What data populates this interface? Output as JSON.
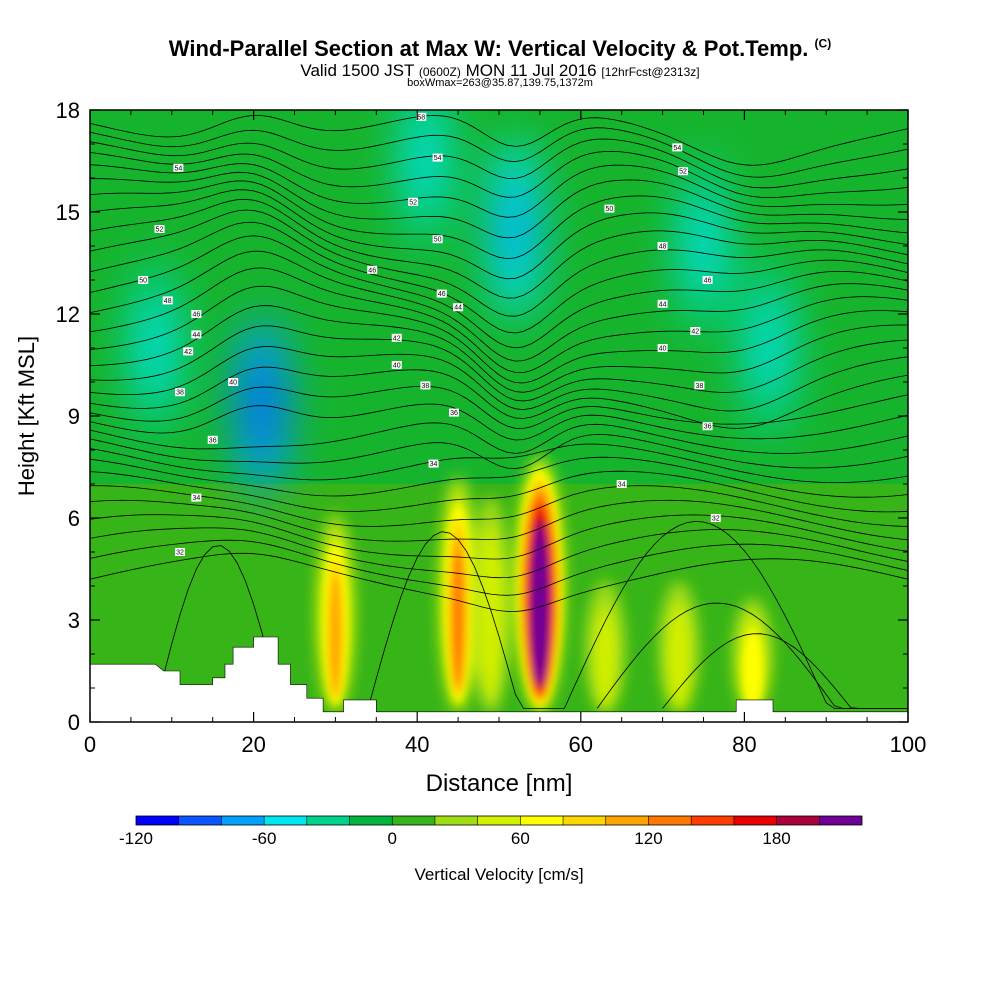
{
  "title": {
    "main": "Wind-Parallel Section at Max W: Vertical Velocity & Pot.Temp.",
    "copyright": "(C)",
    "valid_prefix": "Valid 1500 JST",
    "valid_utc": "(0600Z)",
    "valid_date": "MON 11 Jul 2016",
    "forecast": "[12hrFcst@2313z]",
    "boxwmax": "boxWmax=263@35.87,139.75,1372m"
  },
  "chart_data": {
    "type": "heatmap",
    "xlabel": "Distance [nm]",
    "ylabel": "Height [Kft MSL]",
    "xlim": [
      0,
      100
    ],
    "ylim": [
      0,
      18
    ],
    "x_ticks": [
      0,
      20,
      40,
      60,
      80,
      100
    ],
    "y_ticks": [
      0,
      3,
      6,
      9,
      12,
      15,
      18
    ],
    "colorbar": {
      "label": "Vertical Velocity [cm/s]",
      "range": [
        -120,
        220
      ],
      "step": 20,
      "tick_labels": [
        -120,
        -60,
        0,
        60,
        120,
        180
      ],
      "colors": [
        "#0000ff",
        "#0a55ff",
        "#00a0ff",
        "#00e6f0",
        "#00d28c",
        "#00b43c",
        "#37b418",
        "#a0dc14",
        "#d2f000",
        "#ffff00",
        "#ffd700",
        "#ffa500",
        "#ff7800",
        "#ff3c00",
        "#e60000",
        "#aa003c",
        "#6e0096"
      ]
    },
    "updrafts": [
      {
        "x": 55,
        "top_kft": 8.2,
        "max_cms": 263
      },
      {
        "x": 45,
        "top_kft": 7.6,
        "max_cms": 130
      },
      {
        "x": 30,
        "top_kft": 6.5,
        "max_cms": 110
      },
      {
        "x": 81,
        "top_kft": 4.0,
        "max_cms": 80
      },
      {
        "x": 72,
        "top_kft": 4.5,
        "max_cms": 60
      },
      {
        "x": 49,
        "top_kft": 7.0,
        "max_cms": 60
      },
      {
        "x": 63,
        "top_kft": 4.5,
        "max_cms": 50
      }
    ],
    "downdrafts": [
      {
        "x": 21,
        "y_kft": 9.3,
        "min_cms": -70
      },
      {
        "x": 52,
        "y_kft": 14.5,
        "min_cms": -50
      },
      {
        "x": 41,
        "y_kft": 16.5,
        "min_cms": -40
      },
      {
        "x": 8,
        "y_kft": 11,
        "min_cms": -30
      },
      {
        "x": 83,
        "y_kft": 11,
        "min_cms": -30
      },
      {
        "x": 75,
        "y_kft": 14,
        "min_cms": -25
      }
    ],
    "pot_temp_contours": {
      "levels_c": [
        28,
        30,
        32,
        34,
        36,
        38,
        40,
        42,
        44,
        46,
        48,
        50,
        52,
        54,
        56,
        58
      ],
      "labels": [
        {
          "text": "58",
          "x": 40.5,
          "y": 17.8
        },
        {
          "text": "54",
          "x": 10.8,
          "y": 16.3
        },
        {
          "text": "54",
          "x": 42.5,
          "y": 16.6
        },
        {
          "text": "54",
          "x": 71.8,
          "y": 16.9
        },
        {
          "text": "52",
          "x": 72.5,
          "y": 16.2
        },
        {
          "text": "52",
          "x": 39.5,
          "y": 15.3
        },
        {
          "text": "50",
          "x": 63.5,
          "y": 15.1
        },
        {
          "text": "52",
          "x": 8.5,
          "y": 14.5
        },
        {
          "text": "50",
          "x": 42.5,
          "y": 14.2
        },
        {
          "text": "48",
          "x": 70,
          "y": 14.0
        },
        {
          "text": "46",
          "x": 34.5,
          "y": 13.3
        },
        {
          "text": "50",
          "x": 6.5,
          "y": 13.0
        },
        {
          "text": "46",
          "x": 75.5,
          "y": 13.0
        },
        {
          "text": "46",
          "x": 43,
          "y": 12.6
        },
        {
          "text": "48",
          "x": 9.5,
          "y": 12.4
        },
        {
          "text": "44",
          "x": 45,
          "y": 12.2
        },
        {
          "text": "44",
          "x": 70,
          "y": 12.3
        },
        {
          "text": "46",
          "x": 13,
          "y": 12.0
        },
        {
          "text": "44",
          "x": 13,
          "y": 11.4
        },
        {
          "text": "42",
          "x": 74,
          "y": 11.5
        },
        {
          "text": "42",
          "x": 37.5,
          "y": 11.3
        },
        {
          "text": "42",
          "x": 12,
          "y": 10.9
        },
        {
          "text": "40",
          "x": 70,
          "y": 11.0
        },
        {
          "text": "40",
          "x": 37.5,
          "y": 10.5
        },
        {
          "text": "40",
          "x": 17.5,
          "y": 10.0
        },
        {
          "text": "38",
          "x": 41,
          "y": 9.9
        },
        {
          "text": "38",
          "x": 74.5,
          "y": 9.9
        },
        {
          "text": "38",
          "x": 11,
          "y": 9.7
        },
        {
          "text": "36",
          "x": 44.5,
          "y": 9.1
        },
        {
          "text": "36",
          "x": 75.5,
          "y": 8.7
        },
        {
          "text": "36",
          "x": 15,
          "y": 8.3
        },
        {
          "text": "34",
          "x": 42,
          "y": 7.6
        },
        {
          "text": "34",
          "x": 65,
          "y": 7.0
        },
        {
          "text": "34",
          "x": 13,
          "y": 6.6
        },
        {
          "text": "32",
          "x": 76.5,
          "y": 6.0
        },
        {
          "text": "32",
          "x": 11,
          "y": 5.0
        }
      ]
    },
    "terrain_kft": [
      [
        0,
        1.7
      ],
      [
        8,
        1.7
      ],
      [
        9,
        1.5
      ],
      [
        11,
        1.5
      ],
      [
        11,
        1.1
      ],
      [
        15,
        1.1
      ],
      [
        15,
        1.3
      ],
      [
        16.5,
        1.3
      ],
      [
        16.5,
        1.7
      ],
      [
        17.5,
        1.7
      ],
      [
        17.5,
        2.2
      ],
      [
        20,
        2.2
      ],
      [
        20,
        2.5
      ],
      [
        23,
        2.5
      ],
      [
        23,
        1.7
      ],
      [
        24.5,
        1.7
      ],
      [
        24.5,
        1.1
      ],
      [
        26.5,
        1.1
      ],
      [
        26.5,
        0.7
      ],
      [
        28.5,
        0.7
      ],
      [
        28.5,
        0.3
      ],
      [
        31,
        0.3
      ],
      [
        31,
        0.65
      ],
      [
        35,
        0.65
      ],
      [
        35,
        0.3
      ],
      [
        79,
        0.3
      ],
      [
        79,
        0.65
      ],
      [
        83.5,
        0.65
      ],
      [
        83.5,
        0.3
      ],
      [
        100,
        0.3
      ]
    ]
  }
}
